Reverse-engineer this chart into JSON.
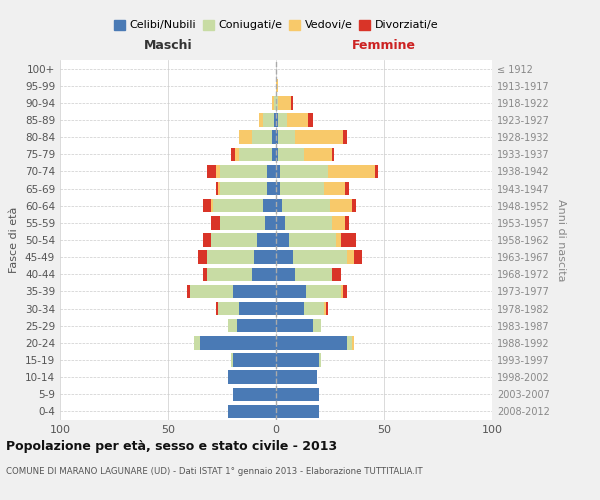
{
  "age_groups": [
    "0-4",
    "5-9",
    "10-14",
    "15-19",
    "20-24",
    "25-29",
    "30-34",
    "35-39",
    "40-44",
    "45-49",
    "50-54",
    "55-59",
    "60-64",
    "65-69",
    "70-74",
    "75-79",
    "80-84",
    "85-89",
    "90-94",
    "95-99",
    "100+"
  ],
  "birth_years": [
    "2008-2012",
    "2003-2007",
    "1998-2002",
    "1993-1997",
    "1988-1992",
    "1983-1987",
    "1978-1982",
    "1973-1977",
    "1968-1972",
    "1963-1967",
    "1958-1962",
    "1953-1957",
    "1948-1952",
    "1943-1947",
    "1938-1942",
    "1933-1937",
    "1928-1932",
    "1923-1927",
    "1918-1922",
    "1913-1917",
    "≤ 1912"
  ],
  "males": {
    "celibi": [
      22,
      20,
      22,
      20,
      35,
      18,
      17,
      20,
      11,
      10,
      9,
      5,
      6,
      4,
      4,
      2,
      2,
      1,
      0,
      0,
      0
    ],
    "coniugati": [
      0,
      0,
      0,
      1,
      3,
      4,
      10,
      20,
      21,
      22,
      21,
      21,
      23,
      22,
      22,
      15,
      9,
      5,
      1,
      0,
      0
    ],
    "vedovi": [
      0,
      0,
      0,
      0,
      0,
      0,
      0,
      0,
      0,
      0,
      0,
      0,
      1,
      1,
      2,
      2,
      6,
      2,
      1,
      0,
      0
    ],
    "divorziati": [
      0,
      0,
      0,
      0,
      0,
      0,
      1,
      1,
      2,
      4,
      4,
      4,
      4,
      1,
      4,
      2,
      0,
      0,
      0,
      0,
      0
    ]
  },
  "females": {
    "nubili": [
      20,
      20,
      19,
      20,
      33,
      17,
      13,
      14,
      9,
      8,
      6,
      4,
      3,
      2,
      2,
      1,
      1,
      1,
      0,
      0,
      0
    ],
    "coniugate": [
      0,
      0,
      0,
      1,
      2,
      4,
      9,
      16,
      17,
      25,
      22,
      22,
      22,
      20,
      22,
      12,
      8,
      4,
      1,
      0,
      0
    ],
    "vedove": [
      0,
      0,
      0,
      0,
      1,
      0,
      1,
      1,
      0,
      3,
      2,
      6,
      10,
      10,
      22,
      13,
      22,
      10,
      6,
      1,
      0
    ],
    "divorziate": [
      0,
      0,
      0,
      0,
      0,
      0,
      1,
      2,
      4,
      4,
      7,
      2,
      2,
      2,
      1,
      1,
      2,
      2,
      1,
      0,
      0
    ]
  },
  "color_celibi": "#4a7ab5",
  "color_coniugati": "#c8dca4",
  "color_vedovi": "#f8c96a",
  "color_divorziati": "#d93428",
  "xlim": 100,
  "title": "Popolazione per età, sesso e stato civile - 2013",
  "subtitle": "COMUNE DI MARANO LAGUNARE (UD) - Dati ISTAT 1° gennaio 2013 - Elaborazione TUTTITALIA.IT",
  "ylabel": "Fasce di età",
  "ylabel_right": "Anni di nascita",
  "xlabel_left": "Maschi",
  "xlabel_right": "Femmine",
  "bg_color": "#f0f0f0",
  "plot_bg": "#ffffff"
}
